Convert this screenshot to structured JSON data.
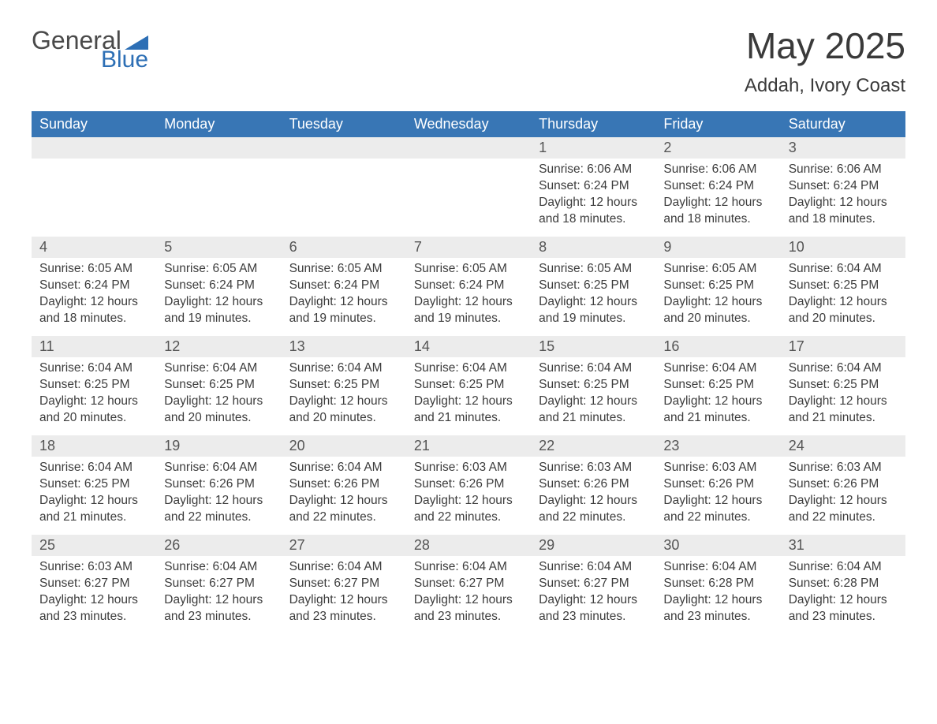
{
  "logo": {
    "text_general": "General",
    "text_blue": "Blue",
    "triangle_color": "#2d6fb5"
  },
  "title": "May 2025",
  "location": "Addah, Ivory Coast",
  "colors": {
    "header_bg": "#3876b5",
    "header_text": "#ffffff",
    "daynum_bg": "#ececec",
    "row_border": "#3876b5",
    "body_text": "#3c3c3c"
  },
  "weekdays": [
    "Sunday",
    "Monday",
    "Tuesday",
    "Wednesday",
    "Thursday",
    "Friday",
    "Saturday"
  ],
  "weeks": [
    [
      null,
      null,
      null,
      null,
      {
        "n": "1",
        "sunrise": "6:06 AM",
        "sunset": "6:24 PM",
        "daylight": "12 hours and 18 minutes."
      },
      {
        "n": "2",
        "sunrise": "6:06 AM",
        "sunset": "6:24 PM",
        "daylight": "12 hours and 18 minutes."
      },
      {
        "n": "3",
        "sunrise": "6:06 AM",
        "sunset": "6:24 PM",
        "daylight": "12 hours and 18 minutes."
      }
    ],
    [
      {
        "n": "4",
        "sunrise": "6:05 AM",
        "sunset": "6:24 PM",
        "daylight": "12 hours and 18 minutes."
      },
      {
        "n": "5",
        "sunrise": "6:05 AM",
        "sunset": "6:24 PM",
        "daylight": "12 hours and 19 minutes."
      },
      {
        "n": "6",
        "sunrise": "6:05 AM",
        "sunset": "6:24 PM",
        "daylight": "12 hours and 19 minutes."
      },
      {
        "n": "7",
        "sunrise": "6:05 AM",
        "sunset": "6:24 PM",
        "daylight": "12 hours and 19 minutes."
      },
      {
        "n": "8",
        "sunrise": "6:05 AM",
        "sunset": "6:25 PM",
        "daylight": "12 hours and 19 minutes."
      },
      {
        "n": "9",
        "sunrise": "6:05 AM",
        "sunset": "6:25 PM",
        "daylight": "12 hours and 20 minutes."
      },
      {
        "n": "10",
        "sunrise": "6:04 AM",
        "sunset": "6:25 PM",
        "daylight": "12 hours and 20 minutes."
      }
    ],
    [
      {
        "n": "11",
        "sunrise": "6:04 AM",
        "sunset": "6:25 PM",
        "daylight": "12 hours and 20 minutes."
      },
      {
        "n": "12",
        "sunrise": "6:04 AM",
        "sunset": "6:25 PM",
        "daylight": "12 hours and 20 minutes."
      },
      {
        "n": "13",
        "sunrise": "6:04 AM",
        "sunset": "6:25 PM",
        "daylight": "12 hours and 20 minutes."
      },
      {
        "n": "14",
        "sunrise": "6:04 AM",
        "sunset": "6:25 PM",
        "daylight": "12 hours and 21 minutes."
      },
      {
        "n": "15",
        "sunrise": "6:04 AM",
        "sunset": "6:25 PM",
        "daylight": "12 hours and 21 minutes."
      },
      {
        "n": "16",
        "sunrise": "6:04 AM",
        "sunset": "6:25 PM",
        "daylight": "12 hours and 21 minutes."
      },
      {
        "n": "17",
        "sunrise": "6:04 AM",
        "sunset": "6:25 PM",
        "daylight": "12 hours and 21 minutes."
      }
    ],
    [
      {
        "n": "18",
        "sunrise": "6:04 AM",
        "sunset": "6:25 PM",
        "daylight": "12 hours and 21 minutes."
      },
      {
        "n": "19",
        "sunrise": "6:04 AM",
        "sunset": "6:26 PM",
        "daylight": "12 hours and 22 minutes."
      },
      {
        "n": "20",
        "sunrise": "6:04 AM",
        "sunset": "6:26 PM",
        "daylight": "12 hours and 22 minutes."
      },
      {
        "n": "21",
        "sunrise": "6:03 AM",
        "sunset": "6:26 PM",
        "daylight": "12 hours and 22 minutes."
      },
      {
        "n": "22",
        "sunrise": "6:03 AM",
        "sunset": "6:26 PM",
        "daylight": "12 hours and 22 minutes."
      },
      {
        "n": "23",
        "sunrise": "6:03 AM",
        "sunset": "6:26 PM",
        "daylight": "12 hours and 22 minutes."
      },
      {
        "n": "24",
        "sunrise": "6:03 AM",
        "sunset": "6:26 PM",
        "daylight": "12 hours and 22 minutes."
      }
    ],
    [
      {
        "n": "25",
        "sunrise": "6:03 AM",
        "sunset": "6:27 PM",
        "daylight": "12 hours and 23 minutes."
      },
      {
        "n": "26",
        "sunrise": "6:04 AM",
        "sunset": "6:27 PM",
        "daylight": "12 hours and 23 minutes."
      },
      {
        "n": "27",
        "sunrise": "6:04 AM",
        "sunset": "6:27 PM",
        "daylight": "12 hours and 23 minutes."
      },
      {
        "n": "28",
        "sunrise": "6:04 AM",
        "sunset": "6:27 PM",
        "daylight": "12 hours and 23 minutes."
      },
      {
        "n": "29",
        "sunrise": "6:04 AM",
        "sunset": "6:27 PM",
        "daylight": "12 hours and 23 minutes."
      },
      {
        "n": "30",
        "sunrise": "6:04 AM",
        "sunset": "6:28 PM",
        "daylight": "12 hours and 23 minutes."
      },
      {
        "n": "31",
        "sunrise": "6:04 AM",
        "sunset": "6:28 PM",
        "daylight": "12 hours and 23 minutes."
      }
    ]
  ],
  "labels": {
    "sunrise": "Sunrise: ",
    "sunset": "Sunset: ",
    "daylight": "Daylight: "
  }
}
